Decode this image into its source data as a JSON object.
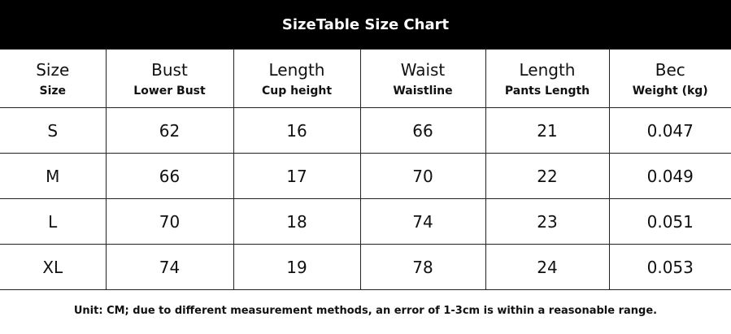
{
  "header": {
    "title": "SizeTable Size Chart"
  },
  "table": {
    "columns": [
      {
        "label": "Size",
        "sublabel": "Size"
      },
      {
        "label": "Bust",
        "sublabel": "Lower Bust"
      },
      {
        "label": "Length",
        "sublabel": "Cup height"
      },
      {
        "label": "Waist",
        "sublabel": "Waistline"
      },
      {
        "label": "Length",
        "sublabel": "Pants Length"
      },
      {
        "label": "Bec",
        "sublabel": "Weight (kg)"
      }
    ],
    "rows": [
      [
        "S",
        "62",
        "16",
        "66",
        "21",
        "0.047"
      ],
      [
        "M",
        "66",
        "17",
        "70",
        "22",
        "0.049"
      ],
      [
        "L",
        "70",
        "18",
        "74",
        "23",
        "0.051"
      ],
      [
        "XL",
        "74",
        "19",
        "78",
        "24",
        "0.053"
      ]
    ]
  },
  "footer": {
    "note": "Unit: CM; due to different measurement methods, an error of 1-3cm is within a reasonable range."
  }
}
